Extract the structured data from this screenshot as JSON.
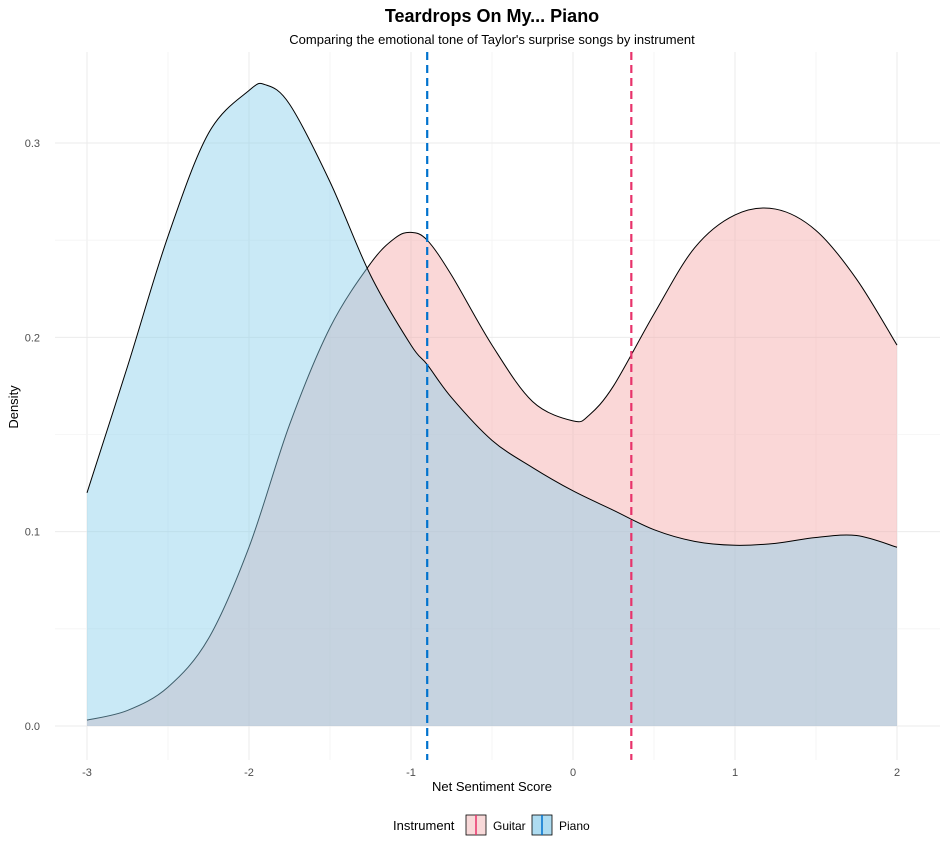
{
  "chart_data": {
    "type": "area",
    "title": "Teardrops On My... Piano",
    "subtitle": "Comparing the emotional tone of Taylor's surprise songs by instrument",
    "xlabel": "Net Sentiment Score",
    "ylabel": "Density",
    "xlim": [
      -3,
      2
    ],
    "ylim": [
      0,
      0.33
    ],
    "x_ticks": [
      -3,
      -2,
      -1,
      0,
      1,
      2
    ],
    "y_ticks": [
      0.0,
      0.1,
      0.2,
      0.3
    ],
    "x_tick_labels": [
      "-3",
      "-2",
      "-1",
      "0",
      "1",
      "2"
    ],
    "y_tick_labels": [
      "0.0",
      "0.1",
      "0.2",
      "0.3"
    ],
    "grid": true,
    "legend": {
      "title": "Instrument",
      "position": "bottom"
    },
    "series": [
      {
        "name": "Guitar",
        "color": "#f4a6a6",
        "line_color": "#e8336b",
        "mean": 0.36,
        "x": [
          -3.0,
          -2.75,
          -2.5,
          -2.25,
          -2.0,
          -1.75,
          -1.5,
          -1.25,
          -1.1,
          -1.0,
          -0.9,
          -0.75,
          -0.5,
          -0.25,
          0.0,
          0.1,
          0.25,
          0.5,
          0.75,
          1.0,
          1.25,
          1.5,
          1.75,
          2.0
        ],
        "y": [
          0.003,
          0.008,
          0.02,
          0.045,
          0.092,
          0.155,
          0.205,
          0.238,
          0.251,
          0.254,
          0.25,
          0.232,
          0.196,
          0.167,
          0.157,
          0.16,
          0.175,
          0.212,
          0.246,
          0.263,
          0.266,
          0.255,
          0.23,
          0.196
        ]
      },
      {
        "name": "Piano",
        "color": "#87ceeb",
        "line_color": "#0072ce",
        "mean": -0.9,
        "x": [
          -3.0,
          -2.75,
          -2.5,
          -2.25,
          -2.0,
          -1.9,
          -1.75,
          -1.5,
          -1.25,
          -1.0,
          -0.9,
          -0.75,
          -0.5,
          -0.25,
          0.0,
          0.25,
          0.5,
          0.75,
          1.0,
          1.25,
          1.5,
          1.75,
          2.0
        ],
        "y": [
          0.12,
          0.185,
          0.252,
          0.305,
          0.327,
          0.33,
          0.32,
          0.28,
          0.232,
          0.196,
          0.186,
          0.169,
          0.147,
          0.133,
          0.121,
          0.111,
          0.101,
          0.095,
          0.093,
          0.094,
          0.097,
          0.098,
          0.092
        ]
      }
    ]
  }
}
